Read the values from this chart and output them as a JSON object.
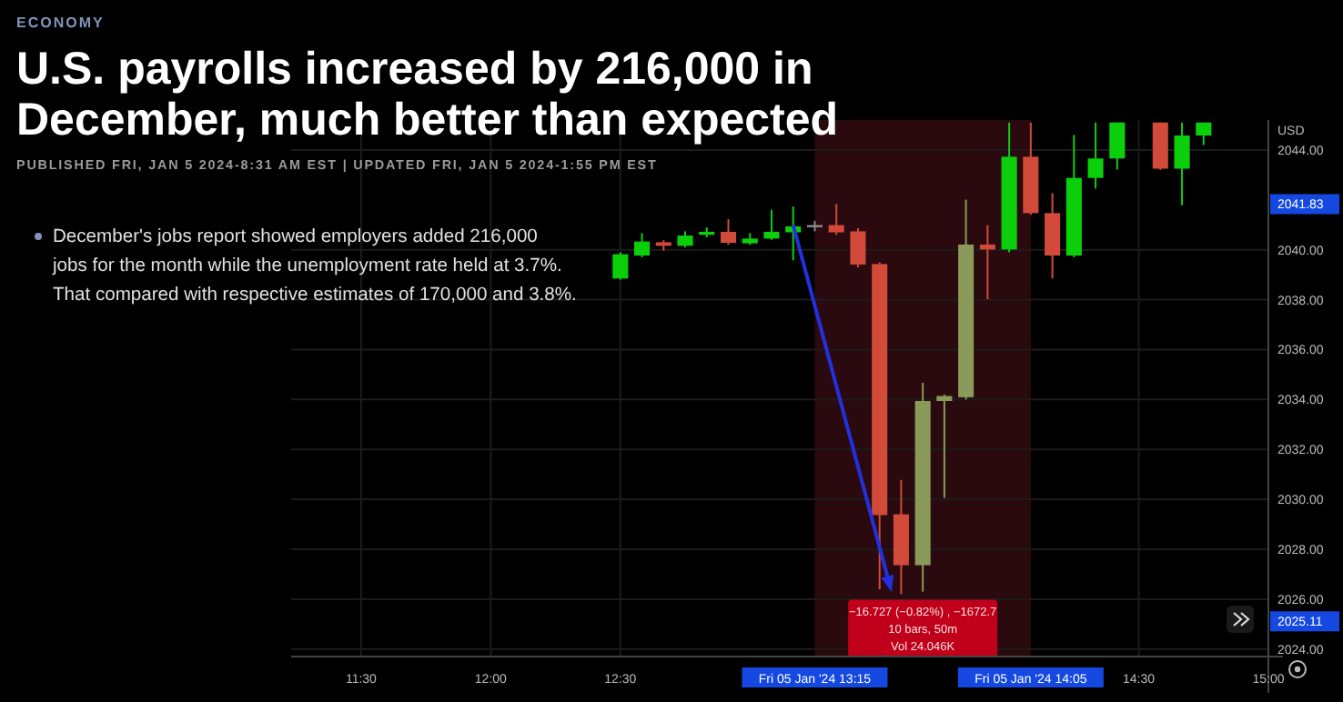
{
  "chart_data": {
    "type": "candlestick",
    "title": "U.S. payrolls increased by 216,000 in December, much better than expected",
    "subtitle": "PUBLISHED FRI, JAN 5 2024-8:31 AM EST | UPDATED FRI, JAN 5 2024-1:55 PM EST",
    "ylabel": "USD",
    "annotations": [
      "ECONOMY",
      "December's jobs report showed employers added 216,000 jobs for the month while the unemployment rate held at 3.7%. That compared with respective estimates of 170,000 and 3.8%.",
      "−16.727 (−0.82%) , −1672.7",
      "10 bars, 50m",
      "Vol 24.046K"
    ],
    "x": [
      12.5,
      12.5833,
      12.6667,
      12.75,
      12.8333,
      12.9167,
      13,
      13.0833,
      13.1667,
      13.25,
      13.3333,
      13.4167,
      13.5,
      13.5833,
      13.6667,
      13.75,
      13.8333,
      13.9167,
      14,
      14.0833,
      14.1667,
      14.25,
      14.3333,
      14.4167,
      14.5833,
      14.6667,
      14.75
    ],
    "ohlc": [
      [
        2038.85,
        2039.9,
        2038.8,
        2039.82
      ],
      [
        2039.77,
        2040.67,
        2039.7,
        2040.33
      ],
      [
        2040.3,
        2040.38,
        2039.97,
        2040.16
      ],
      [
        2040.16,
        2040.74,
        2040.1,
        2040.57
      ],
      [
        2040.6,
        2040.9,
        2040.5,
        2040.72
      ],
      [
        2040.72,
        2041.23,
        2040.2,
        2040.28
      ],
      [
        2040.26,
        2040.67,
        2040.2,
        2040.45
      ],
      [
        2040.45,
        2041.6,
        2040.4,
        2040.72
      ],
      [
        2040.7,
        2041.74,
        2039.58,
        2040.94
      ],
      [
        2040.99,
        2041.16,
        2040.74,
        2040.99
      ],
      [
        2040.99,
        2041.83,
        2040.6,
        2040.7
      ],
      [
        2040.74,
        2040.87,
        2039.3,
        2039.41
      ],
      [
        2039.43,
        2039.5,
        2026.4,
        2029.37
      ],
      [
        2029.4,
        2030.78,
        2026.2,
        2027.36
      ],
      [
        2027.36,
        2034.67,
        2026.3,
        2033.94
      ],
      [
        2033.94,
        2034.2,
        2030.06,
        2034.14
      ],
      [
        2034.09,
        2042.01,
        2034,
        2040.21
      ],
      [
        2040.21,
        2040.99,
        2038.02,
        2040.01
      ],
      [
        2040.01,
        2045.1,
        2039.9,
        2043.73
      ],
      [
        2043.73,
        2045.1,
        2041.4,
        2041.47
      ],
      [
        2041.47,
        2042.27,
        2038.85,
        2039.77
      ],
      [
        2039.77,
        2044.6,
        2039.7,
        2042.88
      ],
      [
        2042.88,
        2045.1,
        2042.45,
        2043.66
      ],
      [
        2043.66,
        2045.1,
        2043.22,
        2045.1
      ],
      [
        2045.1,
        2045.1,
        2043.2,
        2043.25
      ],
      [
        2043.25,
        2045.1,
        2041.79,
        2044.58
      ],
      [
        2044.58,
        2045.1,
        2044.2,
        2045.1
      ]
    ],
    "colors": [
      "#0ccf0c",
      "#0ccf0c",
      "#d24a3a",
      "#0ccf0c",
      "#0ccf0c",
      "#d24a3a",
      "#0ccf0c",
      "#0ccf0c",
      "#0ccf0c",
      "#8a8a8a",
      "#d24a3a",
      "#d24a3a",
      "#d24a3a",
      "#d24a3a",
      "#8a9a5b",
      "#8a9a5b",
      "#8a9a5b",
      "#d24a3a",
      "#0ccf0c",
      "#d24a3a",
      "#d24a3a",
      "#0ccf0c",
      "#0ccf0c",
      "#0ccf0c",
      "#d24a3a",
      "#0ccf0c",
      "#0ccf0c"
    ],
    "xlim": [
      11.23,
      15.0
    ],
    "ylim": [
      2023.7,
      2045.2
    ],
    "xticks": [
      {
        "value": 11.5,
        "label": "11:30"
      },
      {
        "value": 12,
        "label": "12:00"
      },
      {
        "value": 12.5,
        "label": "12:30"
      },
      {
        "value": 13.25,
        "label": "Fri 05 Jan '24 13:15"
      },
      {
        "value": 14.0833,
        "label": "Fri 05 Jan '24 14:05"
      },
      {
        "value": 14.5,
        "label": "14:30"
      },
      {
        "value": 15,
        "label": "15:00"
      }
    ],
    "yticks": [
      {
        "value": 2044,
        "label": "2044.00"
      },
      {
        "value": 2041.83,
        "label": "2041.83"
      },
      {
        "value": 2040,
        "label": "2040.00"
      },
      {
        "value": 2038,
        "label": "2038.00"
      },
      {
        "value": 2036,
        "label": "2036.00"
      },
      {
        "value": 2034,
        "label": "2034.00"
      },
      {
        "value": 2032,
        "label": "2032.00"
      },
      {
        "value": 2030,
        "label": "2030.00"
      },
      {
        "value": 2028,
        "label": "2028.00"
      },
      {
        "value": 2026,
        "label": "2026.00"
      },
      {
        "value": 2025.11,
        "label": "2025.11"
      },
      {
        "value": 2024,
        "label": "2024.00"
      }
    ],
    "grid": true,
    "bands": [
      {
        "axis": "x",
        "from": 13.25,
        "to": 14.0833,
        "color": "#2a0a0e"
      }
    ]
  }
}
